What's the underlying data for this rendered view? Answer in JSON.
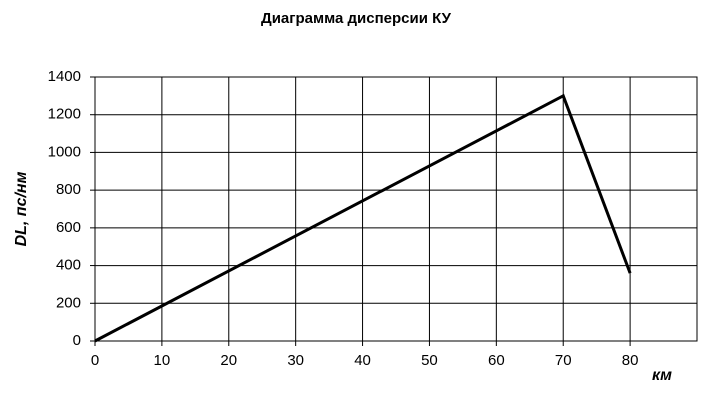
{
  "chart_data": {
    "type": "line",
    "title": "Диаграмма дисперсии КУ",
    "x_label": "км",
    "y_label": "DL, пс/нм",
    "x": [
      0,
      70,
      80
    ],
    "series": [
      {
        "name": "DL",
        "color": "#000000",
        "values": [
          0,
          1300,
          360
        ]
      }
    ],
    "xlim": [
      0,
      90
    ],
    "xticks": [
      0,
      10,
      20,
      30,
      40,
      50,
      60,
      70,
      80
    ],
    "ylim": [
      0,
      1400
    ],
    "yticks": [
      0,
      200,
      400,
      600,
      800,
      1000,
      1200,
      1400
    ],
    "grid": true
  }
}
